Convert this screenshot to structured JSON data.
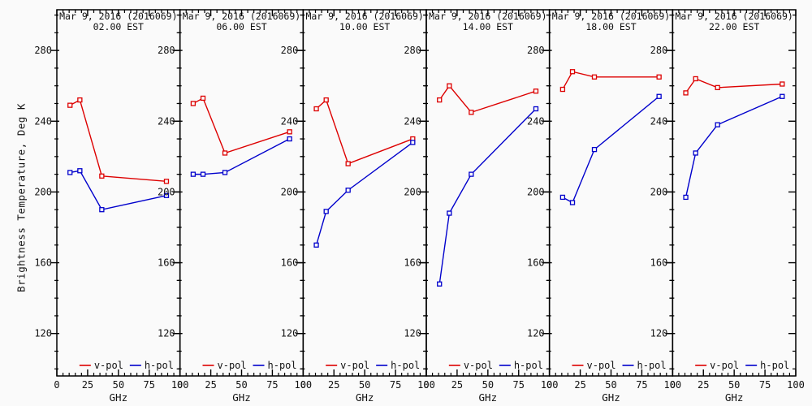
{
  "figure": {
    "ylabel": "Brightness Temperature, Deg K",
    "xlabel": "GHz",
    "background": "#fafafa",
    "axis_color": "#000000",
    "vpol_color": "#dd0000",
    "hpol_color": "#0000cc",
    "legend": {
      "vpol_label": "v-pol",
      "hpol_label": "h-pol"
    }
  },
  "chart_data": [
    {
      "type": "line",
      "title": "Mar  9, 2016 (2016069)",
      "subtitle": "02.00 EST",
      "x": [
        10.7,
        18.7,
        36.5,
        89.0
      ],
      "xlabel": "GHz",
      "series": [
        {
          "name": "v-pol",
          "color": "#dd0000",
          "values": [
            249,
            252,
            209,
            206
          ]
        },
        {
          "name": "h-pol",
          "color": "#0000cc",
          "values": [
            211,
            212,
            190,
            198
          ]
        }
      ],
      "xlim": [
        0,
        100
      ],
      "ylim": [
        96,
        303
      ],
      "xticks": [
        0,
        25,
        50,
        75,
        100
      ],
      "yticks": [
        120,
        160,
        200,
        240,
        280
      ],
      "grid": false,
      "legend_position": "bottom-inside"
    },
    {
      "type": "line",
      "title": "Mar  9, 2016 (2016069)",
      "subtitle": "06.00 EST",
      "x": [
        10.7,
        18.7,
        36.5,
        89.0
      ],
      "xlabel": "GHz",
      "series": [
        {
          "name": "v-pol",
          "color": "#dd0000",
          "values": [
            250,
            253,
            222,
            234
          ]
        },
        {
          "name": "h-pol",
          "color": "#0000cc",
          "values": [
            210,
            210,
            211,
            230
          ]
        }
      ],
      "xlim": [
        0,
        100
      ],
      "ylim": [
        96,
        303
      ],
      "xticks": [
        0,
        25,
        50,
        75,
        100
      ],
      "yticks": [
        120,
        160,
        200,
        240,
        280
      ],
      "grid": false,
      "legend_position": "bottom-inside"
    },
    {
      "type": "line",
      "title": "Mar  9, 2016 (2016069)",
      "subtitle": "10.00 EST",
      "x": [
        10.7,
        18.7,
        36.5,
        89.0
      ],
      "xlabel": "GHz",
      "series": [
        {
          "name": "v-pol",
          "color": "#dd0000",
          "values": [
            247,
            252,
            216,
            230
          ]
        },
        {
          "name": "h-pol",
          "color": "#0000cc",
          "values": [
            170,
            189,
            201,
            228
          ]
        }
      ],
      "xlim": [
        0,
        100
      ],
      "ylim": [
        96,
        303
      ],
      "xticks": [
        0,
        25,
        50,
        75,
        100
      ],
      "yticks": [
        120,
        160,
        200,
        240,
        280
      ],
      "grid": false,
      "legend_position": "bottom-inside"
    },
    {
      "type": "line",
      "title": "Mar  9, 2016 (2016069)",
      "subtitle": "14.00 EST",
      "x": [
        10.7,
        18.7,
        36.5,
        89.0
      ],
      "xlabel": "GHz",
      "series": [
        {
          "name": "v-pol",
          "color": "#dd0000",
          "values": [
            252,
            260,
            245,
            257
          ]
        },
        {
          "name": "h-pol",
          "color": "#0000cc",
          "values": [
            148,
            188,
            210,
            247
          ]
        }
      ],
      "xlim": [
        0,
        100
      ],
      "ylim": [
        96,
        303
      ],
      "xticks": [
        0,
        25,
        50,
        75,
        100
      ],
      "yticks": [
        120,
        160,
        200,
        240,
        280
      ],
      "grid": false,
      "legend_position": "bottom-inside"
    },
    {
      "type": "line",
      "title": "Mar  9, 2016 (2016069)",
      "subtitle": "18.00 EST",
      "x": [
        10.7,
        18.7,
        36.5,
        89.0
      ],
      "xlabel": "GHz",
      "series": [
        {
          "name": "v-pol",
          "color": "#dd0000",
          "values": [
            258,
            268,
            265,
            265
          ]
        },
        {
          "name": "h-pol",
          "color": "#0000cc",
          "values": [
            197,
            194,
            224,
            254
          ]
        }
      ],
      "xlim": [
        0,
        100
      ],
      "ylim": [
        96,
        303
      ],
      "xticks": [
        0,
        25,
        50,
        75,
        100
      ],
      "yticks": [
        120,
        160,
        200,
        240,
        280
      ],
      "grid": false,
      "legend_position": "bottom-inside"
    },
    {
      "type": "line",
      "title": "Mar  9, 2016 (2016069)",
      "subtitle": "22.00 EST",
      "x": [
        10.7,
        18.7,
        36.5,
        89.0
      ],
      "xlabel": "GHz",
      "series": [
        {
          "name": "v-pol",
          "color": "#dd0000",
          "values": [
            256,
            264,
            259,
            261
          ]
        },
        {
          "name": "h-pol",
          "color": "#0000cc",
          "values": [
            197,
            222,
            238,
            254
          ]
        }
      ],
      "xlim": [
        0,
        100
      ],
      "ylim": [
        96,
        303
      ],
      "xticks": [
        0,
        25,
        50,
        75,
        100
      ],
      "yticks": [
        120,
        160,
        200,
        240,
        280
      ],
      "grid": false,
      "legend_position": "bottom-inside"
    }
  ]
}
